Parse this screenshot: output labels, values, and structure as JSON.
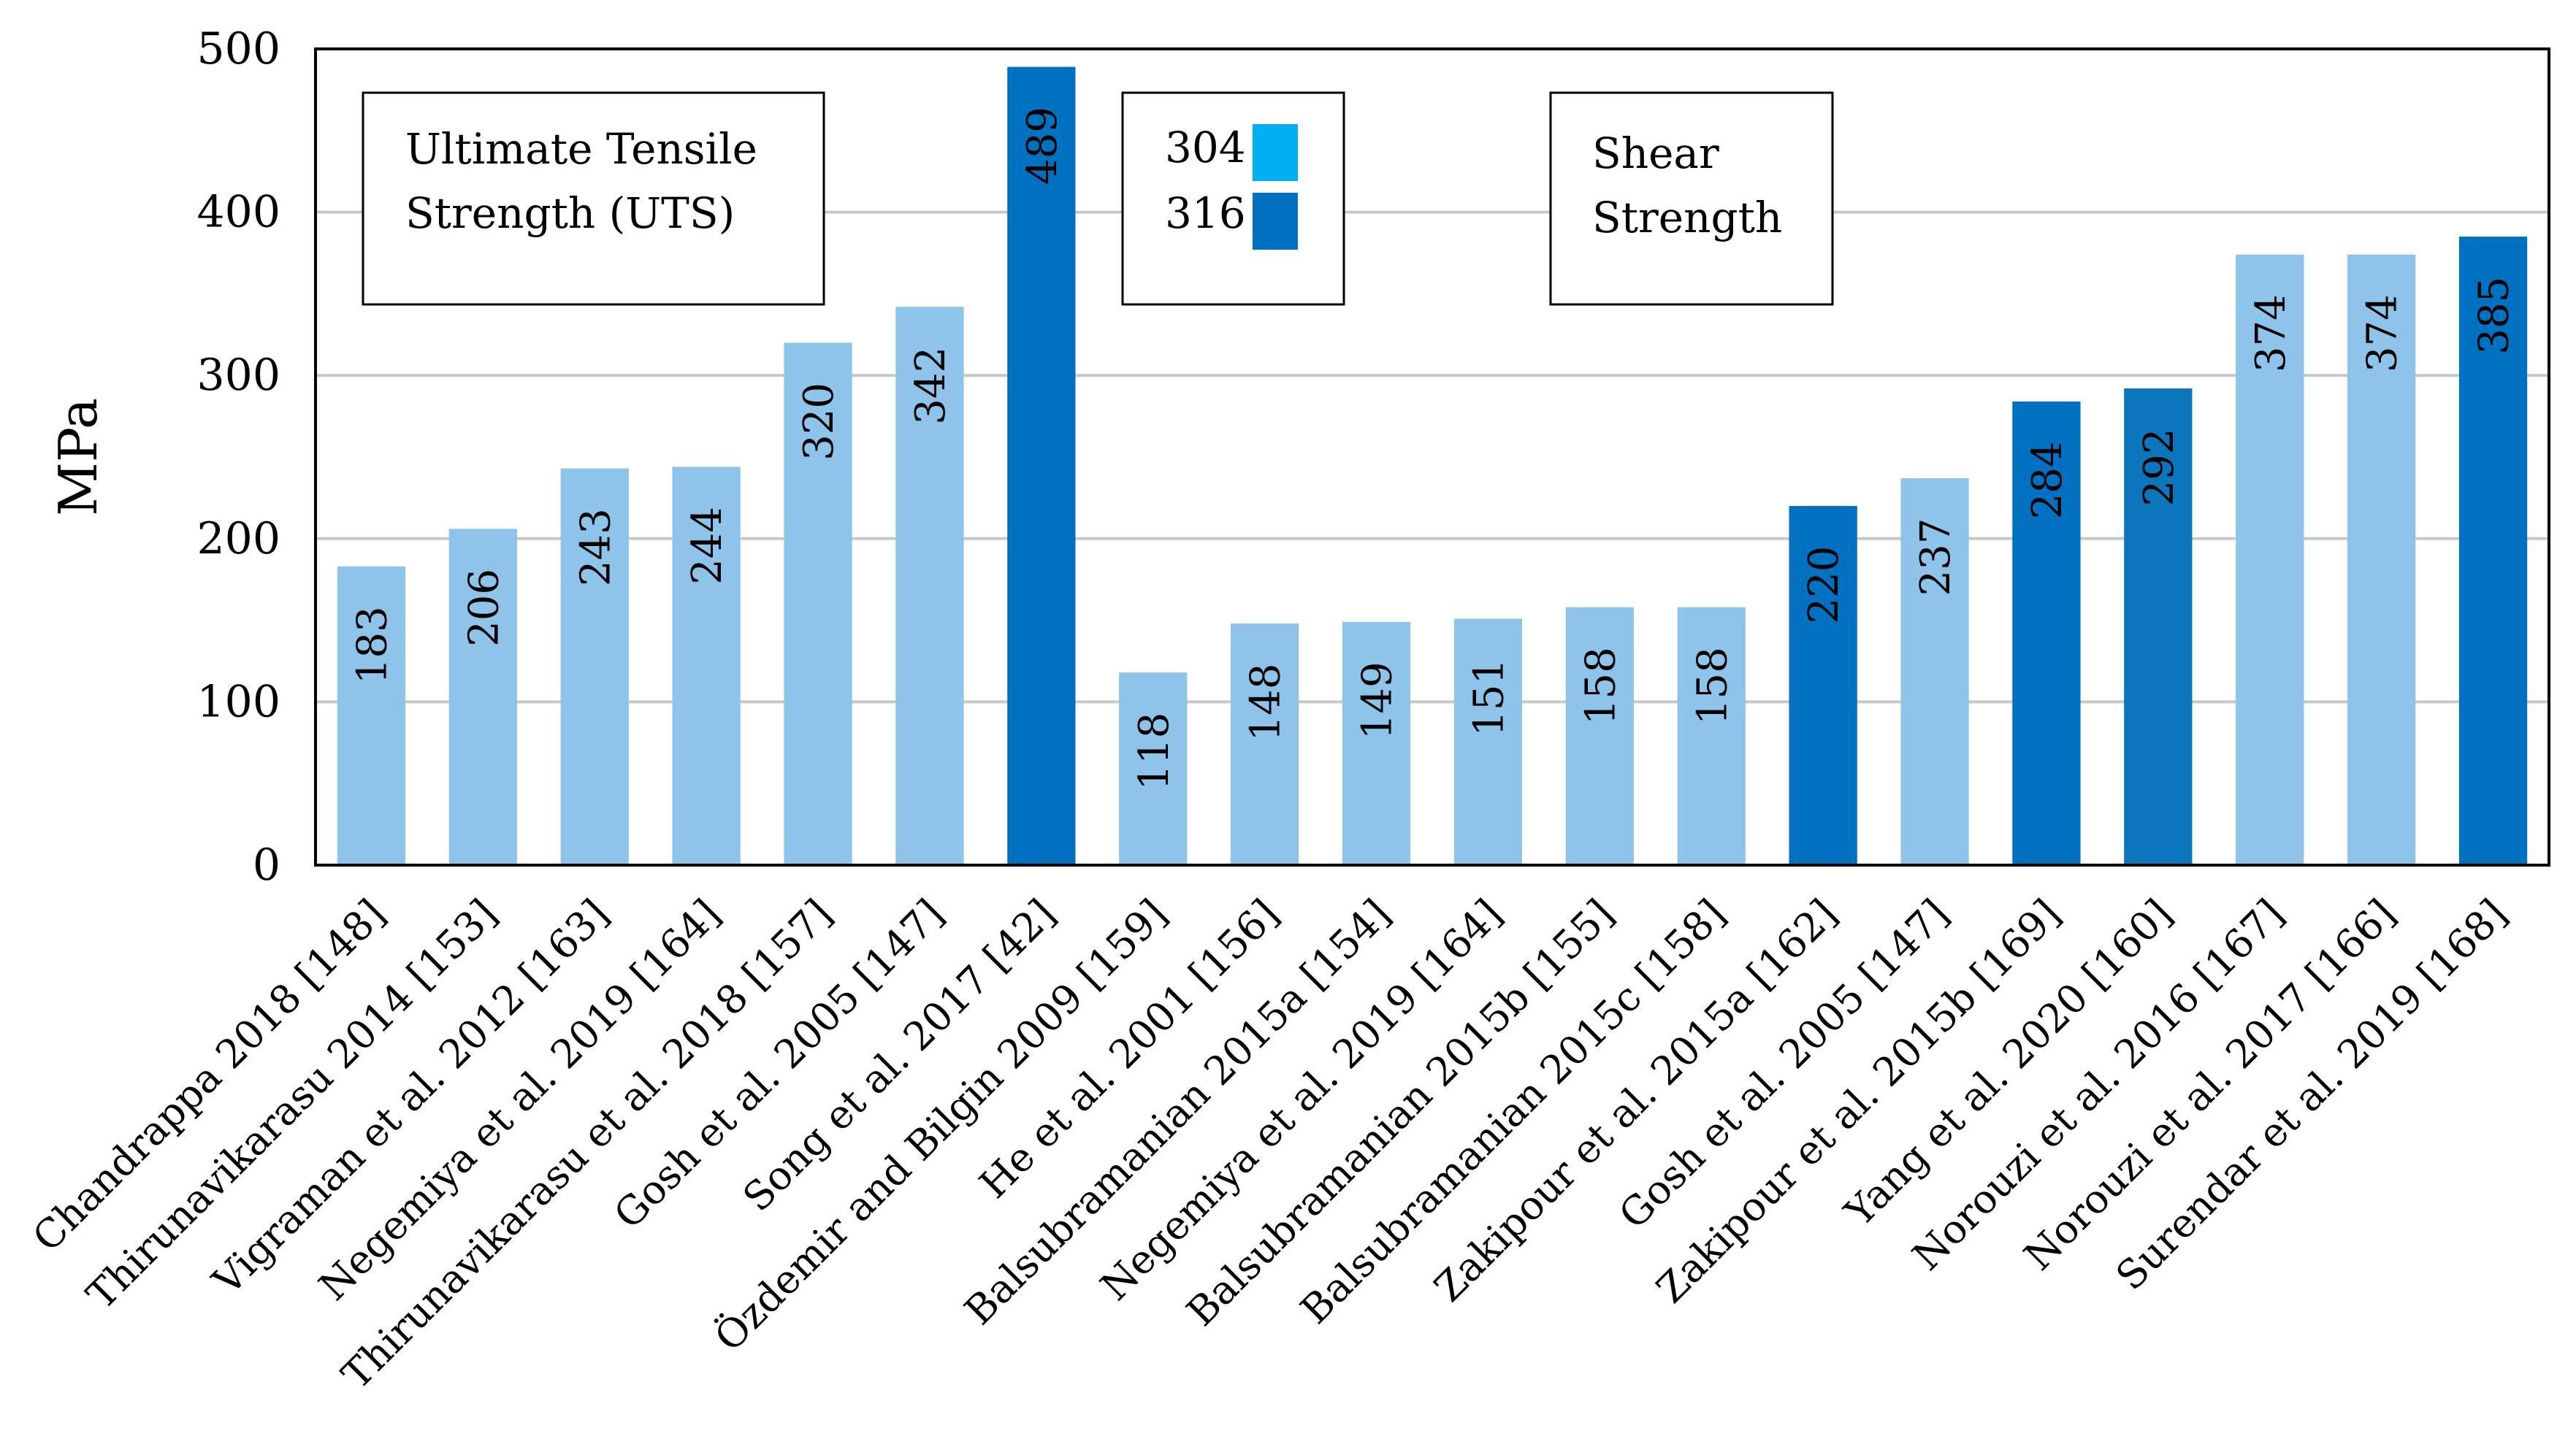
{
  "chart_data": {
    "type": "bar",
    "title": "",
    "xlabel": "",
    "ylabel": "MPa",
    "ylim": [
      0,
      500
    ],
    "yticks": [
      0,
      100,
      200,
      300,
      400,
      500
    ],
    "grid": true,
    "categories": [
      "Chandrappa 2018 [148]",
      "Thirunavikarasu 2014 [153]",
      "Vigraman et al. 2012 [163]",
      "Negemiya et al. 2019 [164]",
      "Thirunavikarasu et al. 2018 [157]",
      "Gosh et al. 2005 [147]",
      "Song et al. 2017 [42]",
      "Özdemir and Bilgin 2009 [159]",
      "He et al. 2001 [156]",
      "Balsubramanian 2015a [154]",
      "Negemiya et al. 2019 [164]",
      "Balsubramanian 2015b [155]",
      "Balsubramanian 2015c [158]",
      "Zakipour et al. 2015a [162]",
      "Gosh et al. 2005 [147]",
      "Zakipour et al. 2015b [169]",
      "Yang et al. 2020 [160]",
      "Norouzi et al. 2016 [167]",
      "Norouzi et al. 2017 [166]",
      "Surendar et al. 2019 [168]"
    ],
    "values": [
      183,
      206,
      243,
      244,
      320,
      342,
      489,
      118,
      148,
      149,
      151,
      158,
      158,
      220,
      237,
      284,
      292,
      374,
      374,
      385
    ],
    "value_labels": [
      "183",
      "206",
      "243",
      "244",
      "320",
      "342",
      "489",
      "118",
      "148",
      "149",
      "151",
      "158",
      "158",
      "220",
      "237",
      "284",
      "292",
      "374",
      "374",
      "385"
    ],
    "series_group": [
      "304",
      "304",
      "304",
      "304",
      "304",
      "304",
      "316",
      "304",
      "304",
      "304",
      "304",
      "304",
      "304",
      "316",
      "304",
      "316",
      "316",
      "304",
      "304",
      "316"
    ],
    "bar_colors": [
      "#8ec3ea",
      "#8ec3ea",
      "#8ec3ea",
      "#8ec3ea",
      "#8ec3ea",
      "#8ec3ea",
      "#0070c0",
      "#8ec3ea",
      "#8ec3ea",
      "#8ec3ea",
      "#8ec3ea",
      "#8ec3ea",
      "#8ec3ea",
      "#0070c0",
      "#8ec3ea",
      "#0070c0",
      "#0b76bb",
      "#8ec3ea",
      "#8ec3ea",
      "#0070c0"
    ],
    "legend": [
      {
        "label": "304",
        "color": "#00b0f0"
      },
      {
        "label": "316",
        "color": "#0070c0"
      }
    ],
    "annotations": [
      {
        "id": "uts",
        "lines": [
          "Ultimate Tensile",
          "Strength (UTS)"
        ]
      },
      {
        "id": "shear",
        "lines": [
          "Shear",
          "Strength"
        ]
      }
    ]
  }
}
